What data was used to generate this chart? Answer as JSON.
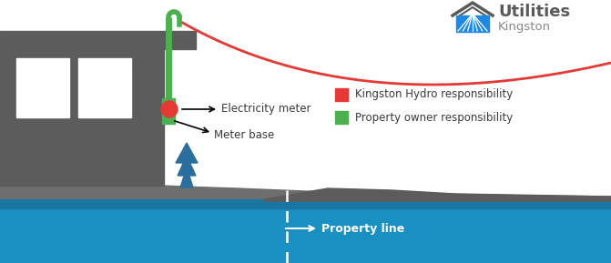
{
  "bg_color": "#ffffff",
  "ground_blue_color": "#1a8fc1",
  "ground_blue_dark": "#1a75a0",
  "ground_gray_color": "#5a5a5a",
  "house_color": "#5c5c5c",
  "house_roof_color": "#4a4a4a",
  "window_color": "#ffffff",
  "tree_color": "#2a6e9e",
  "mast_color": "#4caf50",
  "wire_color": "#e53935",
  "meter_red_color": "#e53935",
  "meter_green_color": "#4caf50",
  "property_line_color": "#ffffff",
  "label_color": "#3a3a3a",
  "legend_red_label": "Kingston Hydro responsibility",
  "legend_green_label": "Property owner responsibility",
  "electricity_meter_label": "Electricity meter",
  "meter_base_label": "Meter base",
  "property_line_label": "Property line",
  "utilities_text": "Utilities",
  "kingston_text": "Kingston",
  "logo_gray": "#5a5a5a",
  "logo_blue": "#1e88e5",
  "sidewalk_color": "#6e6e6e",
  "curb_color": "#4a4a4a"
}
